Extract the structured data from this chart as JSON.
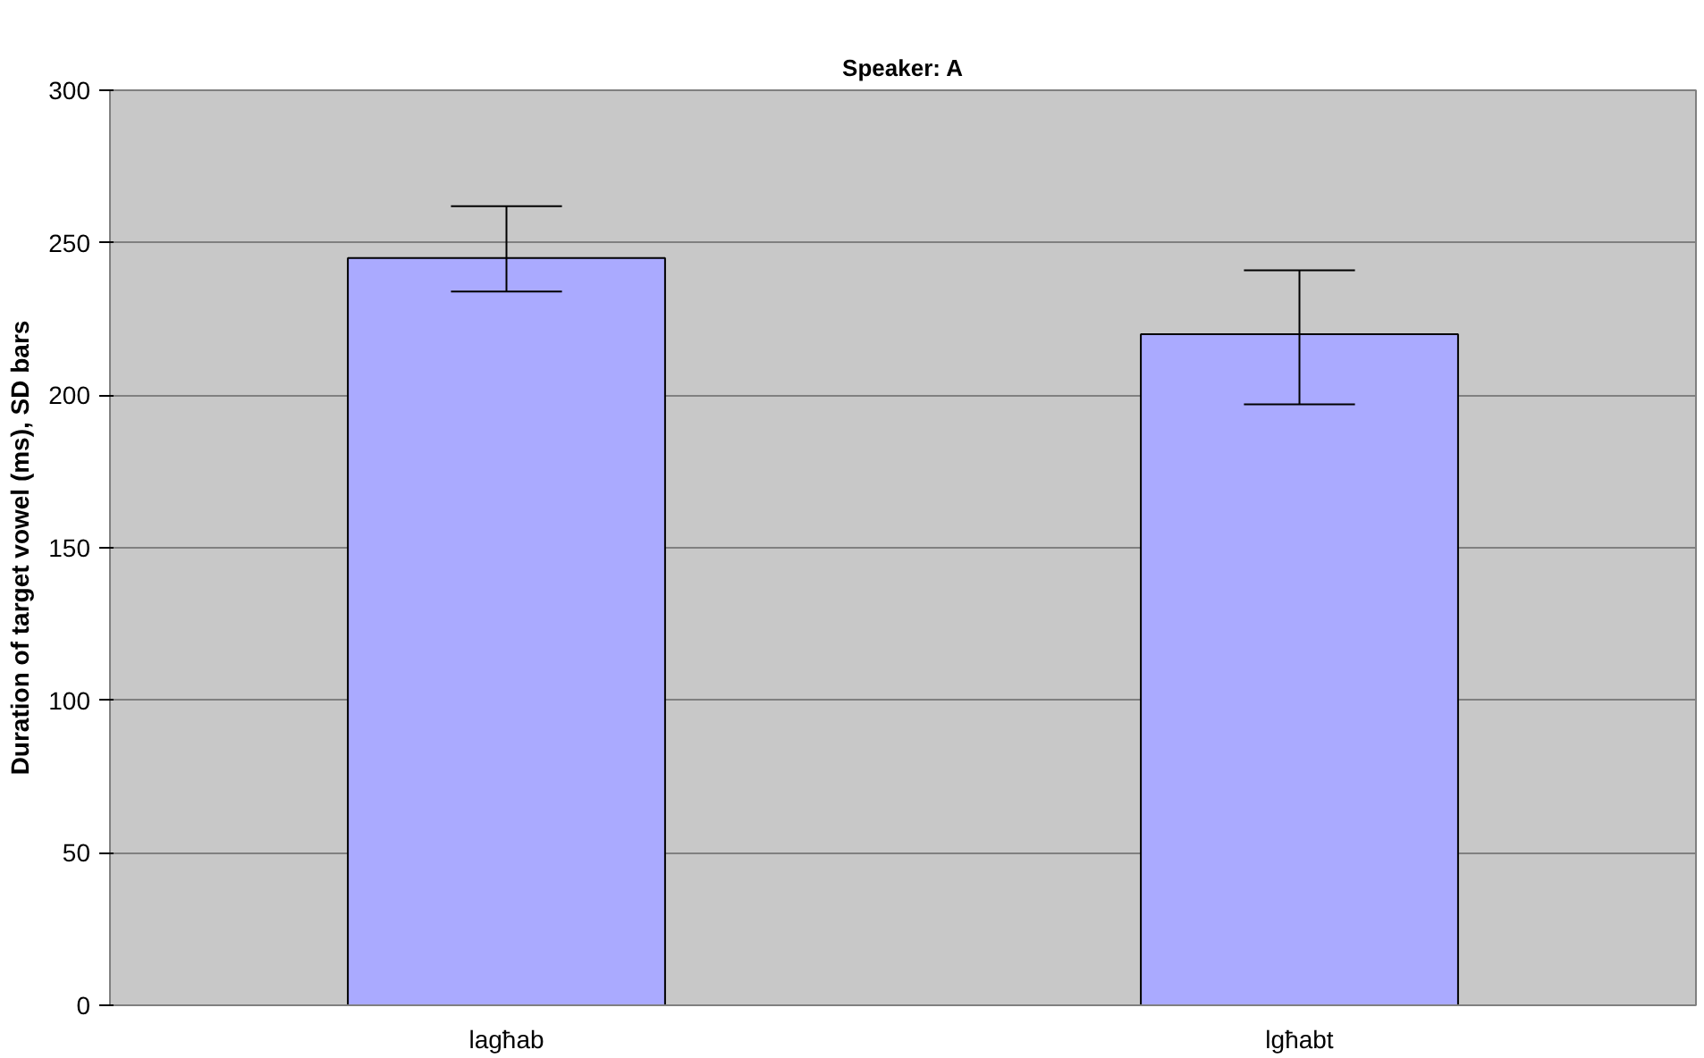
{
  "chart_data": {
    "type": "bar",
    "title": "Speaker: A",
    "ylabel": "Duration of target vowel (ms), SD bars",
    "categories": [
      "lagħab",
      "lgħabt"
    ],
    "values": [
      245,
      220
    ],
    "errors": [
      [
        234,
        262
      ],
      [
        197,
        241
      ]
    ],
    "color": "#aaaaff",
    "ylim": [
      0,
      300
    ],
    "yticks": [
      0,
      50,
      100,
      150,
      200,
      250,
      300
    ],
    "grid": "y"
  }
}
